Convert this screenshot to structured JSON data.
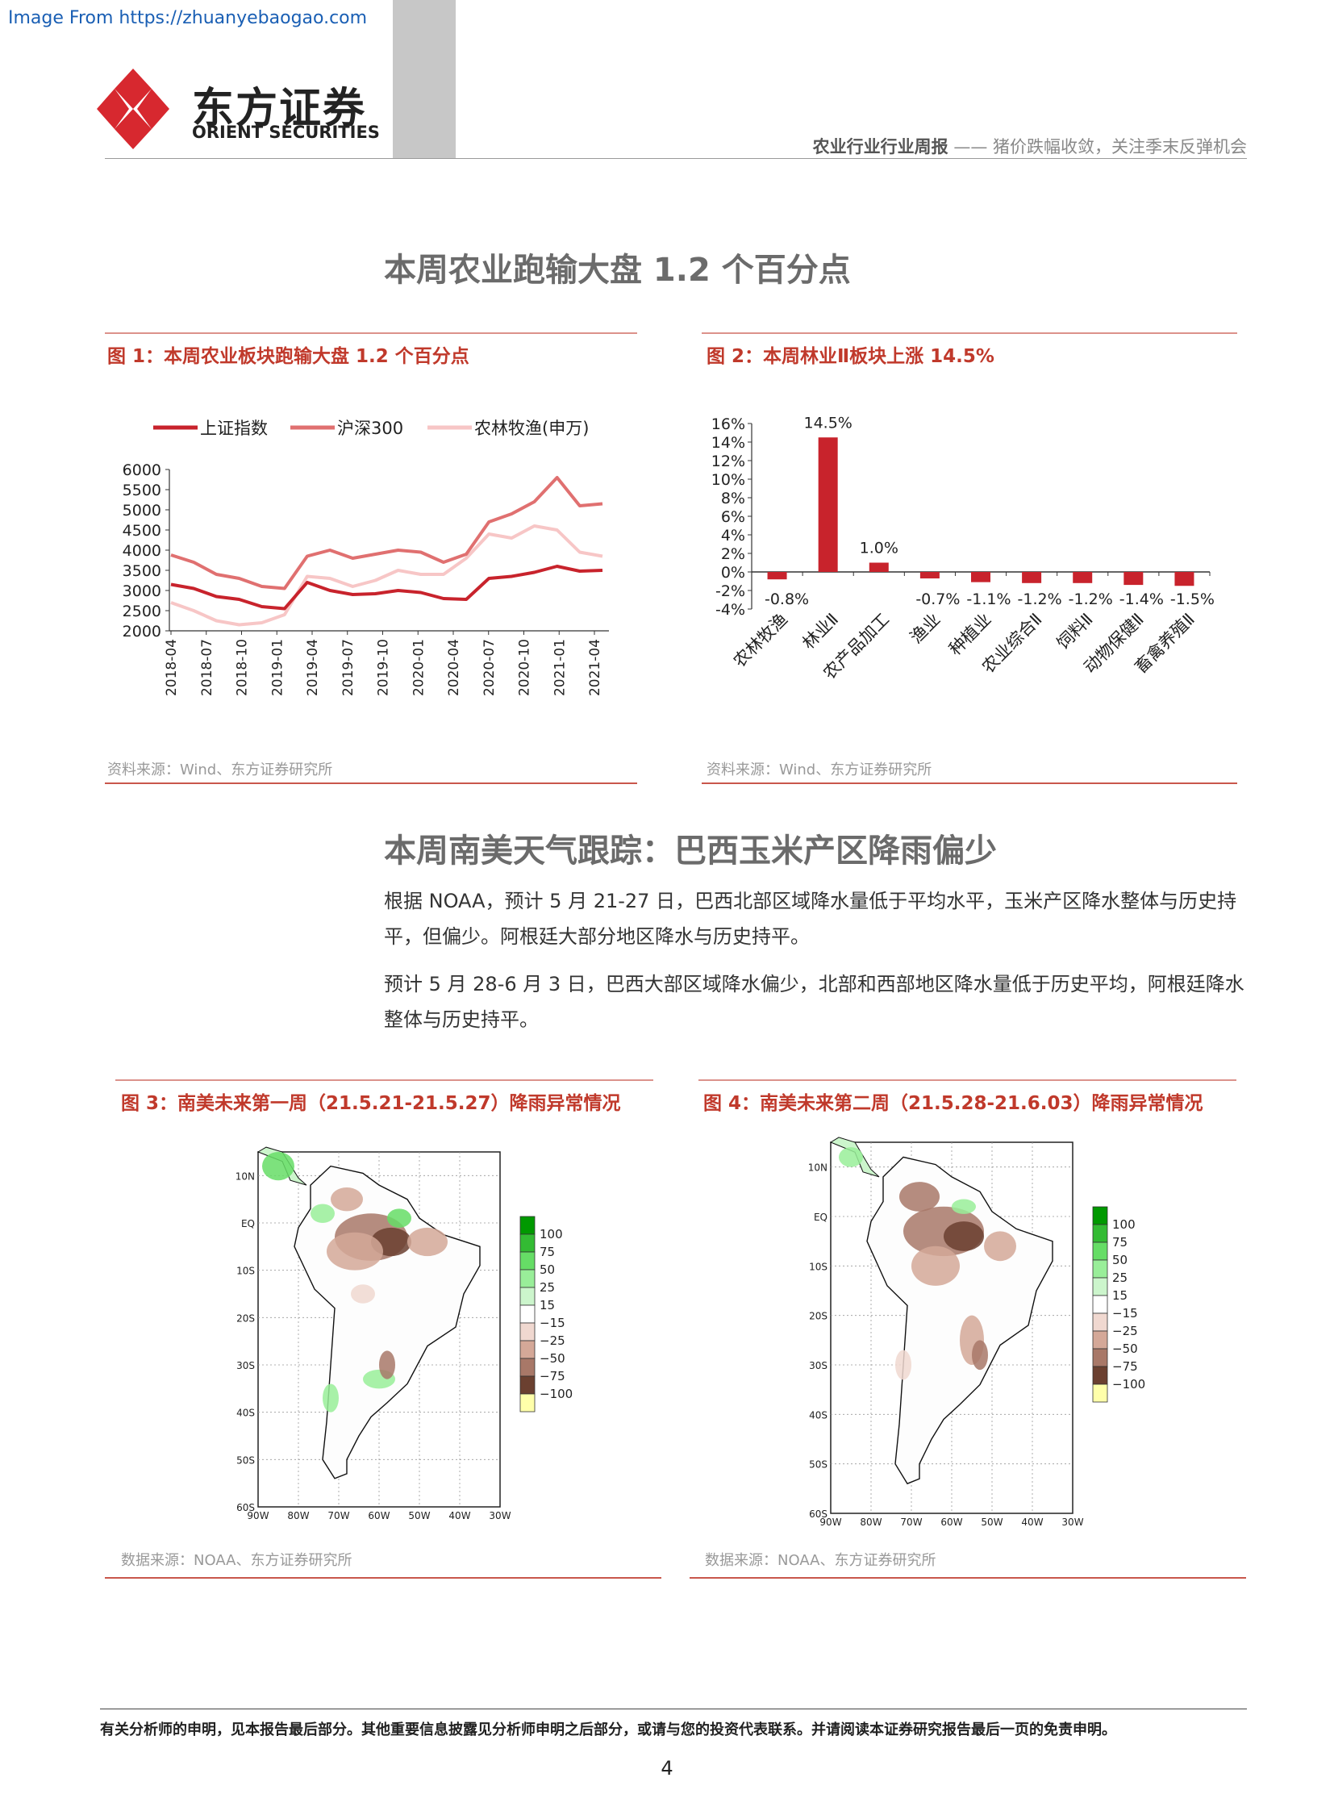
{
  "watermark": "Image From https://zhuanyebaogao.com",
  "brand": {
    "cn": "东方证券",
    "en": "ORIENT SECURITIES"
  },
  "header": {
    "report_type": "农业行业行业周报",
    "dash": " —— ",
    "subtitle": "猪价跌幅收敛，关注季末反弹机会"
  },
  "section1": {
    "title": "本周农业跑输大盘 1.2 个百分点"
  },
  "fig1": {
    "title": "图 1：本周农业板块跑输大盘 1.2 个百分点",
    "source": "资料来源：Wind、东方证券研究所"
  },
  "fig2": {
    "title": "图 2：本周林业Ⅱ板块上涨 14.5%",
    "source": "资料来源：Wind、东方证券研究所"
  },
  "section2": {
    "title": "本周南美天气跟踪：巴西玉米产区降雨偏少",
    "para1": "根据 NOAA，预计 5 月 21-27 日，巴西北部区域降水量低于平均水平，玉米产区降水整体与历史持平，但偏少。阿根廷大部分地区降水与历史持平。",
    "para2": "预计 5 月 28-6 月 3 日，巴西大部区域降水偏少，北部和西部地区降水量低于历史平均，阿根廷降水整体与历史持平。"
  },
  "fig3": {
    "title": "图 3：南美未来第一周（21.5.21-21.5.27）降雨异常情况",
    "source": "数据来源：NOAA、东方证券研究所"
  },
  "fig4": {
    "title": "图 4：南美未来第二周（21.5.28-21.6.03）降雨异常情况",
    "source": "数据来源：NOAA、东方证券研究所"
  },
  "map_axes": {
    "lat_labels": [
      "10N",
      "EQ",
      "10S",
      "20S",
      "30S",
      "40S",
      "50S",
      "60S"
    ],
    "lon_labels": [
      "90W",
      "80W",
      "70W",
      "60W",
      "50W",
      "40W",
      "30W"
    ],
    "legend_labels": [
      "100",
      "75",
      "50",
      "25",
      "15",
      "−15",
      "−25",
      "−50",
      "−75",
      "−100"
    ],
    "legend_colors": [
      "#009900",
      "#33bb33",
      "#66dd66",
      "#99ee99",
      "#ccf5cc",
      "#ffffff",
      "#f0d8d0",
      "#d4a898",
      "#a87868",
      "#6b4030",
      "#ffffaa"
    ]
  },
  "footer": "有关分析师的申明，见本报告最后部分。其他重要信息披露见分析师申明之后部分，或请与您的投资代表联系。并请阅读本证券研究报告最后一页的免责申明。",
  "page_number": "4",
  "chart_data": [
    {
      "type": "line",
      "legend_position": "top",
      "ylim": [
        2000,
        6000
      ],
      "y_ticks": [
        "6000",
        "5500",
        "5000",
        "4500",
        "4000",
        "3500",
        "3000",
        "2500",
        "2000"
      ],
      "x_ticks": [
        "2018-04",
        "2018-07",
        "2018-10",
        "2019-01",
        "2019-04",
        "2019-07",
        "2019-10",
        "2020-01",
        "2020-04",
        "2020-07",
        "2020-10",
        "2021-01",
        "2021-04"
      ],
      "series": [
        {
          "name": "上证指数",
          "color": "#c8232c",
          "values": [
            3150,
            3050,
            2850,
            2780,
            2600,
            2550,
            3200,
            3000,
            2900,
            2920,
            3000,
            2950,
            2800,
            2780,
            3300,
            3350,
            3450,
            3600,
            3480,
            3500
          ]
        },
        {
          "name": "沪深300",
          "color": "#e07070",
          "values": [
            3880,
            3700,
            3400,
            3300,
            3100,
            3050,
            3850,
            4000,
            3800,
            3900,
            4000,
            3950,
            3700,
            3900,
            4700,
            4900,
            5200,
            5800,
            5100,
            5150
          ]
        },
        {
          "name": "农林牧渔(申万)",
          "color": "#f7c6c6",
          "values": [
            2700,
            2500,
            2250,
            2150,
            2200,
            2400,
            3350,
            3300,
            3100,
            3250,
            3500,
            3400,
            3400,
            3800,
            4400,
            4300,
            4600,
            4500,
            3950,
            3850
          ]
        }
      ]
    },
    {
      "type": "bar",
      "color": "#c8232c",
      "ylim": [
        -4,
        16
      ],
      "y_ticks": [
        "16%",
        "14%",
        "12%",
        "10%",
        "8%",
        "6%",
        "4%",
        "2%",
        "0%",
        "-2%",
        "-4%"
      ],
      "categories": [
        "农林牧渔",
        "林业Ⅱ",
        "农产品加工",
        "渔业",
        "种植业",
        "农业综合Ⅱ",
        "饲料Ⅱ",
        "动物保健Ⅱ",
        "畜禽养殖Ⅱ"
      ],
      "values": [
        -0.8,
        14.5,
        1.0,
        -0.7,
        -1.1,
        -1.2,
        -1.2,
        -1.4,
        -1.5
      ],
      "labels": [
        "-0.8%",
        "14.5%",
        "1.0%",
        "-0.7%",
        "-1.1%",
        "-1.2%",
        "-1.2%",
        "-1.4%",
        "-1.5%"
      ]
    }
  ]
}
